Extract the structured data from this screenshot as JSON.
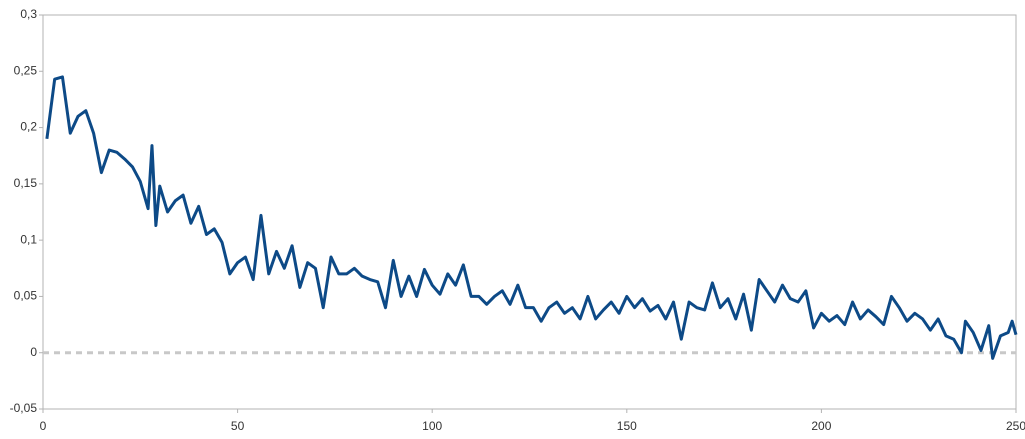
{
  "chart_data": {
    "type": "line",
    "x": [
      1,
      3,
      5,
      7,
      9,
      11,
      13,
      15,
      17,
      19,
      21,
      23,
      25,
      27,
      28,
      29,
      30,
      32,
      34,
      36,
      38,
      40,
      42,
      44,
      46,
      48,
      50,
      52,
      54,
      56,
      58,
      60,
      62,
      64,
      66,
      68,
      70,
      72,
      74,
      76,
      78,
      80,
      82,
      84,
      86,
      88,
      90,
      92,
      94,
      96,
      98,
      100,
      102,
      104,
      106,
      108,
      110,
      112,
      114,
      116,
      118,
      120,
      122,
      124,
      126,
      128,
      130,
      132,
      134,
      136,
      138,
      140,
      142,
      144,
      146,
      148,
      150,
      152,
      154,
      156,
      158,
      160,
      162,
      164,
      166,
      168,
      170,
      172,
      174,
      176,
      178,
      180,
      182,
      184,
      186,
      188,
      190,
      192,
      194,
      196,
      198,
      200,
      202,
      204,
      206,
      208,
      210,
      212,
      214,
      216,
      218,
      220,
      222,
      224,
      226,
      228,
      230,
      232,
      234,
      236,
      237,
      239,
      241,
      243,
      244,
      246,
      248,
      249,
      250
    ],
    "series": [
      {
        "color": "#0d4a87",
        "values": [
          0.19,
          0.243,
          0.245,
          0.195,
          0.21,
          0.215,
          0.195,
          0.16,
          0.18,
          0.178,
          0.172,
          0.165,
          0.152,
          0.128,
          0.184,
          0.113,
          0.148,
          0.125,
          0.135,
          0.14,
          0.115,
          0.13,
          0.105,
          0.11,
          0.098,
          0.07,
          0.08,
          0.085,
          0.065,
          0.122,
          0.07,
          0.09,
          0.075,
          0.095,
          0.058,
          0.08,
          0.075,
          0.04,
          0.085,
          0.07,
          0.07,
          0.075,
          0.068,
          0.065,
          0.063,
          0.04,
          0.082,
          0.05,
          0.068,
          0.05,
          0.074,
          0.06,
          0.052,
          0.07,
          0.06,
          0.078,
          0.05,
          0.05,
          0.043,
          0.05,
          0.055,
          0.043,
          0.06,
          0.04,
          0.04,
          0.028,
          0.04,
          0.045,
          0.035,
          0.04,
          0.03,
          0.05,
          0.03,
          0.038,
          0.045,
          0.035,
          0.05,
          0.04,
          0.048,
          0.037,
          0.042,
          0.03,
          0.045,
          0.012,
          0.045,
          0.04,
          0.038,
          0.062,
          0.04,
          0.048,
          0.03,
          0.052,
          0.02,
          0.065,
          0.055,
          0.045,
          0.06,
          0.048,
          0.045,
          0.055,
          0.022,
          0.035,
          0.028,
          0.033,
          0.025,
          0.045,
          0.03,
          0.038,
          0.032,
          0.025,
          0.05,
          0.04,
          0.028,
          0.035,
          0.03,
          0.02,
          0.03,
          0.015,
          0.012,
          0.0,
          0.028,
          0.018,
          0.002,
          0.024,
          -0.005,
          0.015,
          0.018,
          0.028,
          0.016
        ]
      }
    ],
    "xlim": [
      0,
      250
    ],
    "xticks": [
      0,
      50,
      100,
      150,
      200,
      250
    ],
    "ylim": [
      -0.05,
      0.3
    ],
    "yticks": [
      {
        "value": -0.05,
        "label": "-0,05"
      },
      0,
      {
        "value": 0.05,
        "label": "0,05"
      },
      {
        "value": 0.1,
        "label": "0,1"
      },
      {
        "value": 0.15,
        "label": "0,15"
      },
      {
        "value": 0.2,
        "label": "0,2"
      },
      {
        "value": 0.25,
        "label": "0,25"
      },
      {
        "value": 0.3,
        "label": "0,3"
      }
    ]
  }
}
